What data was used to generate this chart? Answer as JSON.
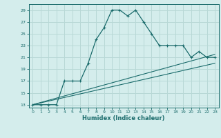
{
  "title": "",
  "xlabel": "Humidex (Indice chaleur)",
  "background_color": "#d4edec",
  "grid_color": "#b8d8d6",
  "line_color": "#1a6b6b",
  "xlim": [
    -0.5,
    23.5
  ],
  "ylim": [
    12.5,
    30.0
  ],
  "xticks": [
    0,
    1,
    2,
    3,
    4,
    5,
    6,
    7,
    8,
    9,
    10,
    11,
    12,
    13,
    14,
    15,
    16,
    17,
    18,
    19,
    20,
    21,
    22,
    23
  ],
  "yticks": [
    13,
    15,
    17,
    19,
    21,
    23,
    25,
    27,
    29
  ],
  "curve1_x": [
    0,
    1,
    2,
    3,
    4,
    5,
    6,
    7,
    8,
    9,
    10,
    11,
    12,
    13,
    14,
    15,
    16,
    17,
    18,
    19,
    20,
    21,
    22,
    23
  ],
  "curve1_y": [
    13,
    13,
    13,
    13,
    17,
    17,
    17,
    20,
    24,
    26,
    29,
    29,
    28,
    29,
    27,
    25,
    23,
    23,
    23,
    23,
    21,
    22,
    21,
    21
  ],
  "curve2_x": [
    0,
    23
  ],
  "curve2_y": [
    13,
    21.5
  ],
  "curve3_x": [
    0,
    23
  ],
  "curve3_y": [
    13,
    20.0
  ],
  "figsize": [
    3.2,
    2.0
  ],
  "dpi": 100
}
